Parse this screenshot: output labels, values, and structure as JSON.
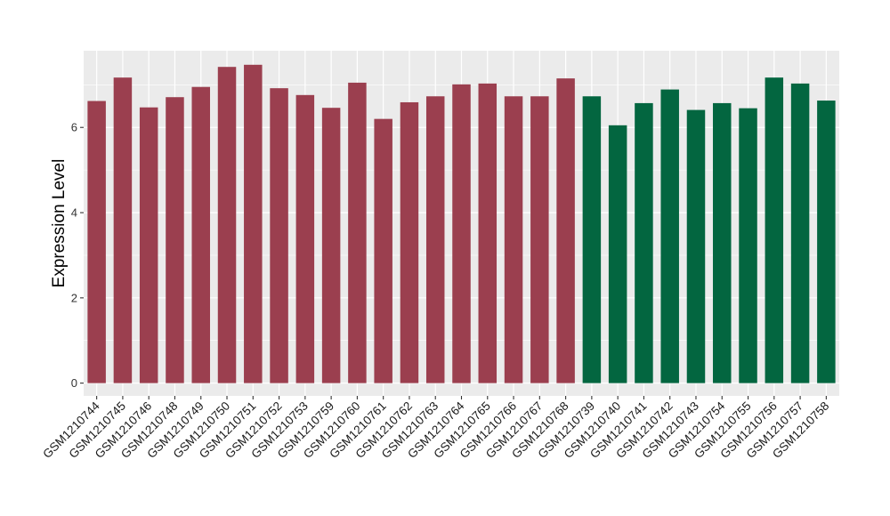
{
  "chart_data": {
    "type": "bar",
    "ylabel": "Expression Level",
    "xlabel": "",
    "ylim": [
      -0.3,
      7.8
    ],
    "yticks": [
      0,
      2,
      4,
      6
    ],
    "grid": true,
    "background": "#ebebeb",
    "gridline_color": "#ffffff",
    "categories": [
      "GSM1210744",
      "GSM1210745",
      "GSM1210746",
      "GSM1210748",
      "GSM1210749",
      "GSM1210750",
      "GSM1210751",
      "GSM1210752",
      "GSM1210753",
      "GSM1210759",
      "GSM1210760",
      "GSM1210761",
      "GSM1210762",
      "GSM1210763",
      "GSM1210764",
      "GSM1210765",
      "GSM1210766",
      "GSM1210767",
      "GSM1210768",
      "GSM1210739",
      "GSM1210740",
      "GSM1210741",
      "GSM1210742",
      "GSM1210743",
      "GSM1210754",
      "GSM1210755",
      "GSM1210756",
      "GSM1210757",
      "GSM1210758"
    ],
    "values": [
      6.62,
      7.17,
      6.47,
      6.71,
      6.95,
      7.42,
      7.47,
      6.92,
      6.76,
      6.46,
      7.05,
      6.2,
      6.59,
      6.73,
      7.01,
      7.03,
      6.73,
      6.73,
      7.15,
      6.73,
      6.05,
      6.57,
      6.89,
      6.41,
      6.57,
      6.45,
      7.17,
      7.03,
      6.63
    ],
    "groups": [
      "A",
      "A",
      "A",
      "A",
      "A",
      "A",
      "A",
      "A",
      "A",
      "A",
      "A",
      "A",
      "A",
      "A",
      "A",
      "A",
      "A",
      "A",
      "A",
      "B",
      "B",
      "B",
      "B",
      "B",
      "B",
      "B",
      "B",
      "B",
      "B"
    ],
    "group_colors": {
      "A": "#9b3f4f",
      "B": "#036640"
    }
  }
}
